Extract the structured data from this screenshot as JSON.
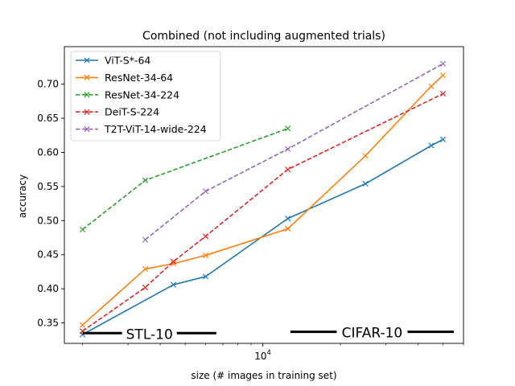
{
  "chart_data": {
    "type": "line",
    "title": "Combined (not including augmented trials)",
    "xlabel": "size (# images in training set)",
    "ylabel": "accuracy",
    "x_scale": "log",
    "xlim": [
      1700,
      60000
    ],
    "ylim": [
      0.32,
      0.755
    ],
    "grid": false,
    "legend_position": "top-left",
    "yticks": [
      "0.35",
      "0.40",
      "0.45",
      "0.50",
      "0.55",
      "0.60",
      "0.65",
      "0.70"
    ],
    "xtick_label": "10^4",
    "series": [
      {
        "name": "ViT-S*-64",
        "color": "#1f77b4",
        "dash": "solid",
        "x": [
          2000,
          4500,
          6000,
          12500,
          25000,
          45000,
          50000
        ],
        "y": [
          0.333,
          0.406,
          0.418,
          0.503,
          0.554,
          0.61,
          0.619
        ]
      },
      {
        "name": "ResNet-34-64",
        "color": "#ff7f0e",
        "dash": "solid",
        "x": [
          2000,
          3500,
          4500,
          6000,
          12500,
          25000,
          45000,
          50000
        ],
        "y": [
          0.347,
          0.429,
          0.437,
          0.449,
          0.488,
          0.595,
          0.697,
          0.713
        ]
      },
      {
        "name": "ResNet-34-224",
        "color": "#2ca02c",
        "dash": "dashed",
        "x": [
          2000,
          3500,
          12500
        ],
        "y": [
          0.487,
          0.559,
          0.635
        ]
      },
      {
        "name": "DeiT-S-224",
        "color": "#d62728",
        "dash": "dashed",
        "x": [
          2000,
          3500,
          4500,
          6000,
          12500,
          50000
        ],
        "y": [
          0.338,
          0.402,
          0.44,
          0.477,
          0.575,
          0.686
        ]
      },
      {
        "name": "T2T-ViT-14-wide-224",
        "color": "#9467bd",
        "dash": "dashed",
        "x": [
          3500,
          6000,
          12500,
          50000
        ],
        "y": [
          0.472,
          0.543,
          0.605,
          0.73
        ]
      }
    ],
    "annotations": [
      {
        "text": "STL-10",
        "line_x": [
          2000,
          6600
        ],
        "y": 0.335
      },
      {
        "text": "CIFAR-10",
        "line_x": [
          12800,
          55000
        ],
        "y": 0.337
      }
    ]
  }
}
